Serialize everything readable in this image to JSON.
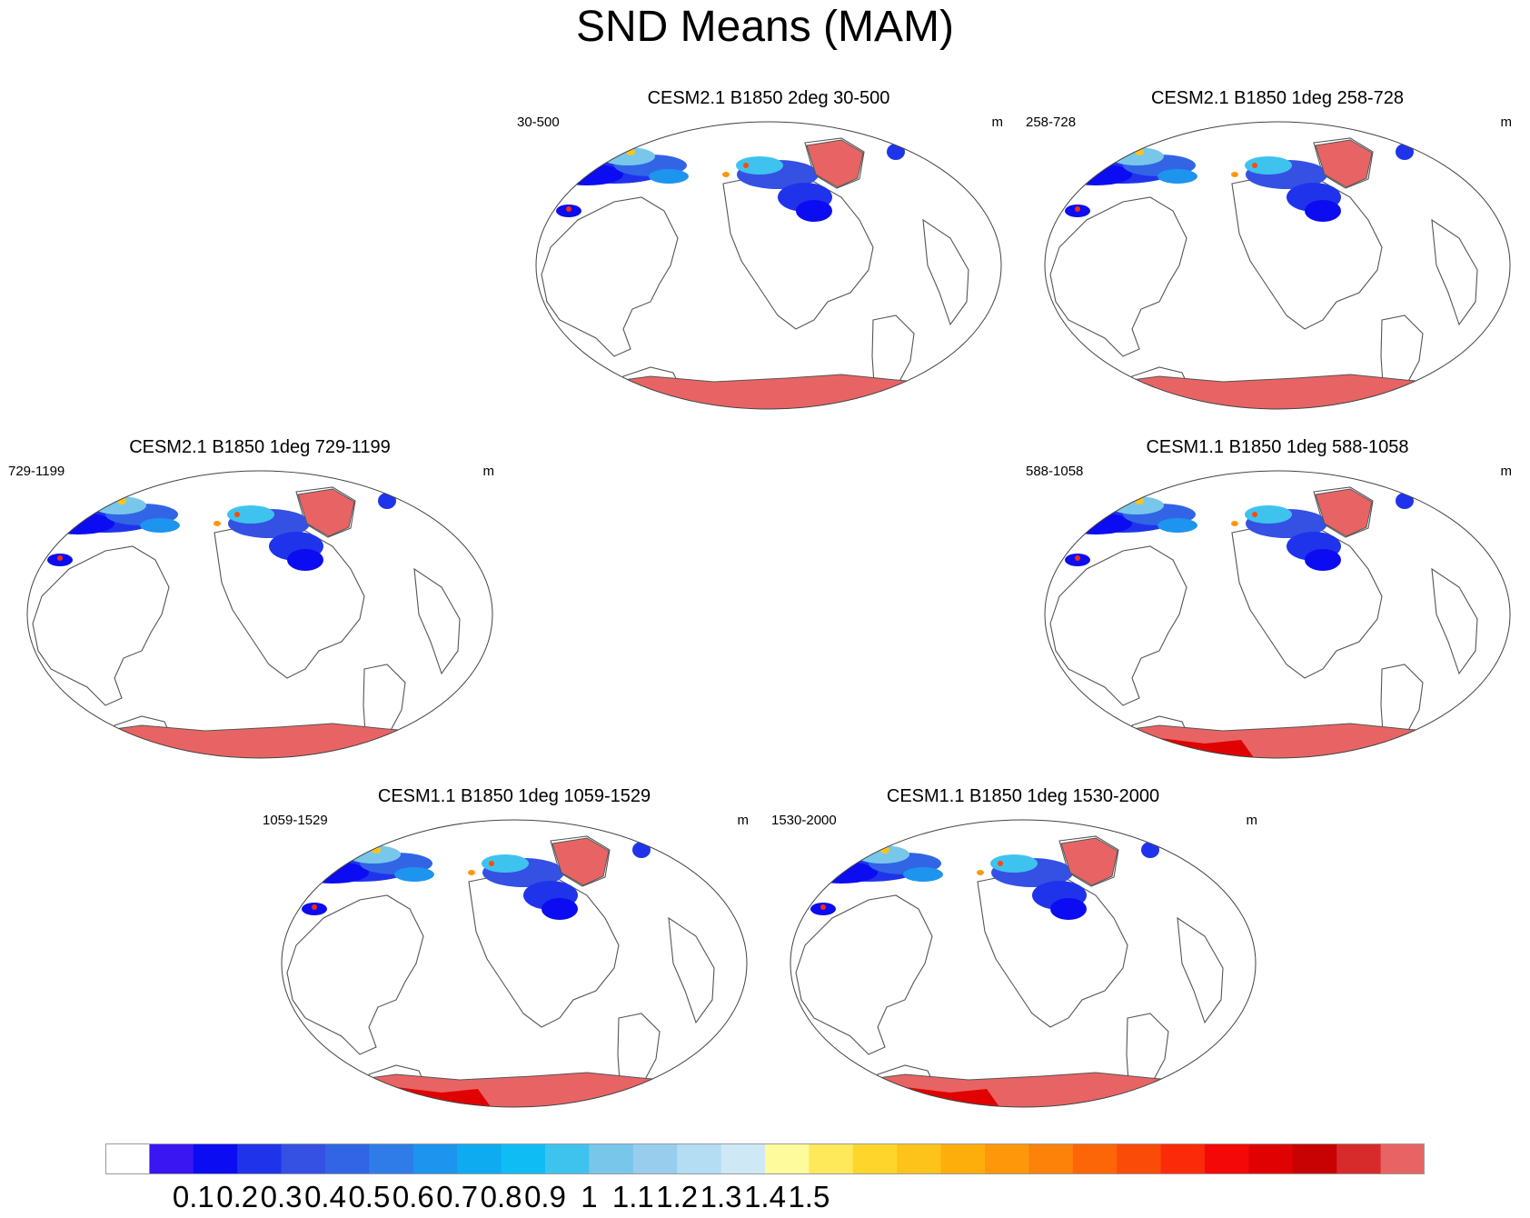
{
  "title": "SND Means (MAM)",
  "panels": [
    {
      "title": "CESM2.1 B1850 2deg 30-500",
      "left_label": "30-500",
      "unit": "m",
      "antarctic_dark": false
    },
    {
      "title": "CESM2.1 B1850 1deg 258-728",
      "left_label": "258-728",
      "unit": "m",
      "antarctic_dark": false
    },
    {
      "title": "CESM2.1 B1850 1deg 729-1199",
      "left_label": "729-1199",
      "unit": "m",
      "antarctic_dark": false
    },
    {
      "title": "CESM1.1 B1850 1deg 588-1058",
      "left_label": "588-1058",
      "unit": "m",
      "antarctic_dark": true
    },
    {
      "title": "CESM1.1 B1850 1deg 1059-1529",
      "left_label": "1059-1529",
      "unit": "m",
      "antarctic_dark": true
    },
    {
      "title": "CESM1.1 B1850 1deg 1530-2000",
      "left_label": "1530-2000",
      "unit": "m",
      "antarctic_dark": true
    }
  ],
  "colorbar": {
    "colors": [
      "#ffffff",
      "#3a16f2",
      "#0c0cf2",
      "#1f34ea",
      "#3451e4",
      "#3165e6",
      "#2f7ce9",
      "#1d94ee",
      "#0fabf0",
      "#10bcf4",
      "#3ec3ef",
      "#78c7ea",
      "#98cdee",
      "#b4dcf3",
      "#cfe8f6",
      "#fefb9c",
      "#fde95a",
      "#fed52a",
      "#fec31b",
      "#feae0b",
      "#fe980a",
      "#fd820a",
      "#fc6609",
      "#fb4b09",
      "#fb2a09",
      "#f40808",
      "#e00202",
      "#c80202",
      "#d72a2a",
      "#e86464"
    ],
    "labels": [
      "0.1",
      "0.2",
      "0.3",
      "0.4",
      "0.5",
      "0.6",
      "0.7",
      "0.8",
      "0.9",
      "1",
      "1.1",
      "1.2",
      "1.3",
      "1.4",
      "1.5"
    ]
  }
}
